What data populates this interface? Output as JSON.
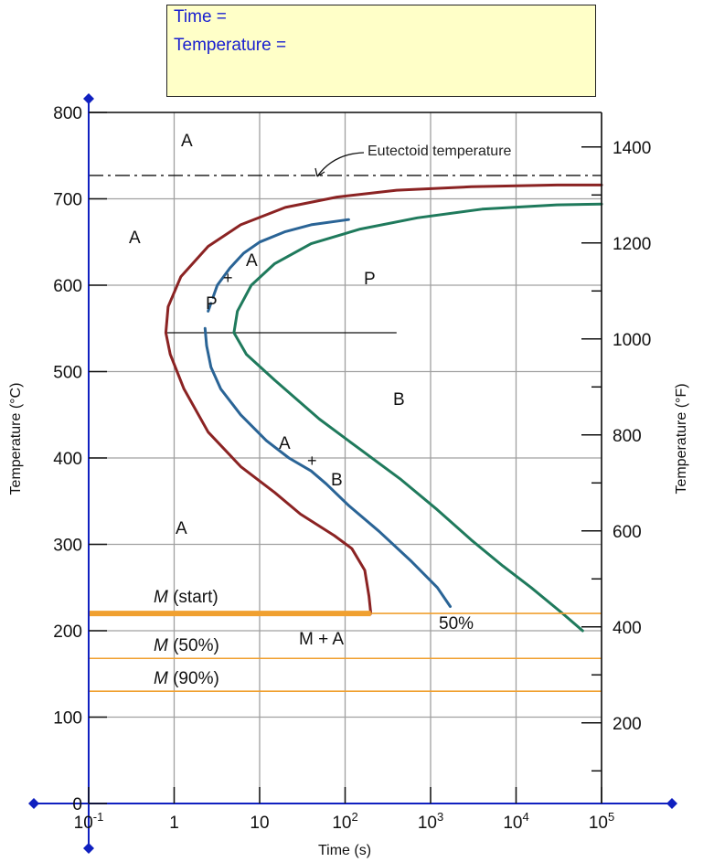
{
  "readout": {
    "time_label": "Time =",
    "temperature_label": "Temperature ="
  },
  "colors": {
    "start_curve": "#8b2323",
    "bainite_mid_curve": "#2a6496",
    "finish_curve": "#1f7a5c",
    "martensite_lines": "#f0a030",
    "axes_handles": "#1020c0",
    "readout_bg": "#ffffc8",
    "readout_text": "#1a20d0",
    "grid": "#a0a0a0"
  },
  "chart_data": {
    "type": "line",
    "x_scale": "log",
    "xlabel": "Time (s)",
    "ylabel": "Temperature (°C)",
    "y2label": "Temperature (°F)",
    "xlim": [
      0.1,
      100000
    ],
    "ylim": [
      0,
      800
    ],
    "y2lim": [
      32,
      1472
    ],
    "grid": true,
    "x_ticks": [
      {
        "value": 0.1,
        "base": "10",
        "exp": "-1"
      },
      {
        "value": 1,
        "base": "1",
        "exp": ""
      },
      {
        "value": 10,
        "base": "10",
        "exp": ""
      },
      {
        "value": 100,
        "base": "10",
        "exp": "2"
      },
      {
        "value": 1000,
        "base": "10",
        "exp": "3"
      },
      {
        "value": 10000,
        "base": "10",
        "exp": "4"
      },
      {
        "value": 100000,
        "base": "10",
        "exp": "5"
      }
    ],
    "y_ticks": [
      0,
      100,
      200,
      300,
      400,
      500,
      600,
      700,
      800
    ],
    "y2_ticks": [
      200,
      400,
      600,
      800,
      1000,
      1200,
      1400
    ],
    "eutectoid_temperature": 727,
    "nose_line": {
      "temperature": 545,
      "x_from": 0.8,
      "x_to": 400
    },
    "series": [
      {
        "key": "start",
        "x": [
          200,
          190,
          170,
          120,
          75,
          30,
          15,
          6,
          2.5,
          1.3,
          0.9,
          0.8,
          0.85,
          1.2,
          2.5,
          6,
          20,
          80,
          400,
          3000,
          30000,
          100000
        ],
        "y": [
          220,
          240,
          270,
          295,
          310,
          335,
          360,
          390,
          430,
          480,
          520,
          545,
          575,
          610,
          645,
          670,
          690,
          702,
          710,
          714,
          716,
          716
        ]
      },
      {
        "key": "mid-upper",
        "x": [
          2.5,
          3.2,
          4.5,
          6.5,
          10,
          20,
          40,
          110
        ],
        "y": [
          570,
          600,
          620,
          637,
          650,
          662,
          670,
          676
        ]
      },
      {
        "key": "mid-lower",
        "x": [
          2.3,
          2.4,
          2.7,
          3.5,
          6,
          12,
          22,
          40,
          60,
          110,
          250,
          600,
          1200,
          1700
        ],
        "y": [
          550,
          530,
          505,
          480,
          450,
          420,
          400,
          385,
          370,
          345,
          315,
          280,
          250,
          228
        ]
      },
      {
        "key": "finish",
        "x": [
          60000,
          35000,
          15000,
          7000,
          3000,
          1200,
          450,
          150,
          50,
          15,
          7,
          5,
          5.5,
          8,
          15,
          40,
          150,
          700,
          4000,
          30000,
          100000
        ],
        "y": [
          200,
          220,
          250,
          275,
          305,
          340,
          375,
          410,
          445,
          490,
          520,
          545,
          570,
          600,
          625,
          648,
          665,
          678,
          688,
          693,
          694
        ]
      }
    ],
    "martensite": [
      {
        "label_prefix": "M",
        "label_suffix": " (start)",
        "temperature": 220
      },
      {
        "label_prefix": "M",
        "label_suffix": " (50%)",
        "temperature": 168
      },
      {
        "label_prefix": "M",
        "label_suffix": " (90%)",
        "temperature": 130
      }
    ],
    "martensite_thick_to": 200,
    "annotations": {
      "eutectoid": "Eutectoid temperature",
      "a_top": "A",
      "a_left": "A",
      "a_low": "A",
      "a_upper_t": "A",
      "plus_upper": "+",
      "p_upper": "P",
      "p_region": "P",
      "b_region": "B",
      "a_lower_t": "A",
      "plus_lower": "+",
      "b_lower_t": "B",
      "m_plus_a": "M + A",
      "fifty": "50%"
    }
  }
}
